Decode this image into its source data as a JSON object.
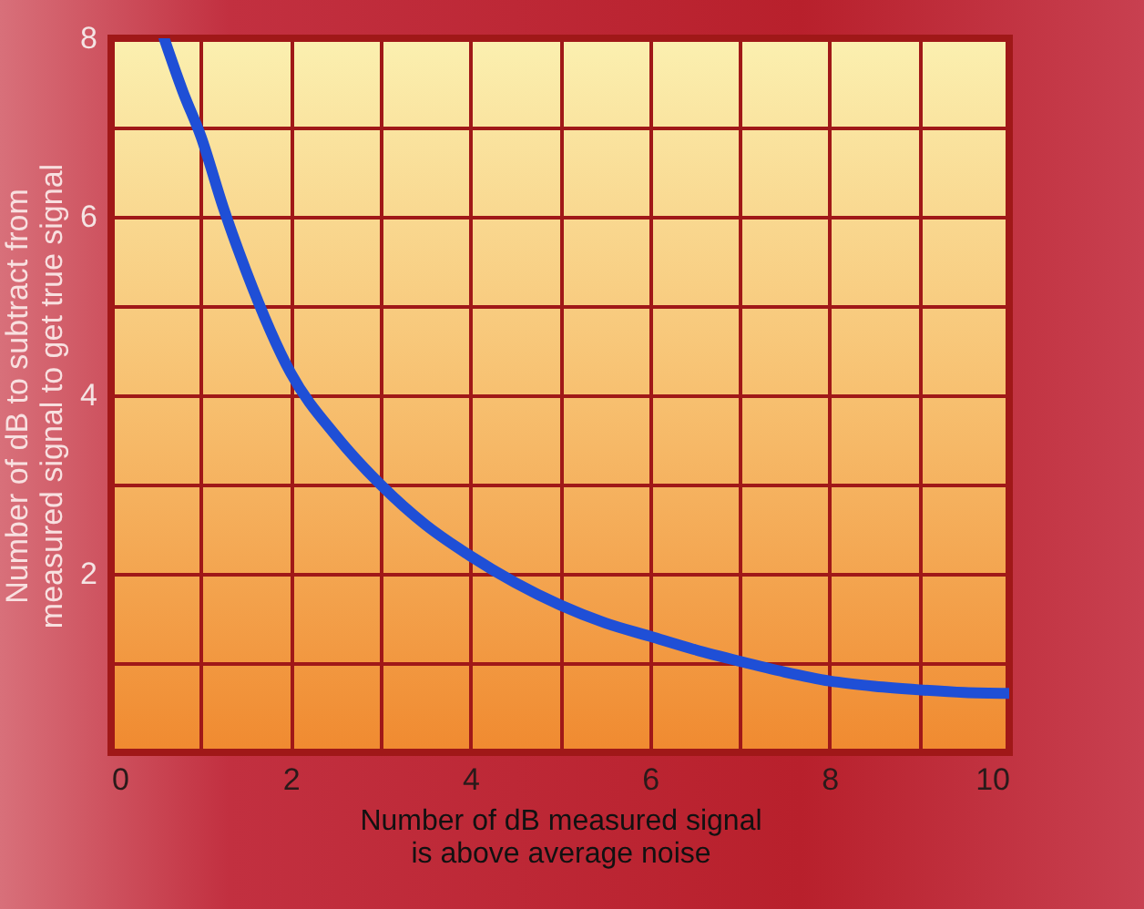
{
  "chart_data": {
    "type": "line",
    "xlabel": "Number of dB measured signal\nis above average noise",
    "ylabel": "Number of dB to subtract from\nmeasured signal to get true signal",
    "x": [
      0.59,
      0.8,
      1,
      1.25,
      1.5,
      2,
      2.5,
      3,
      3.5,
      4,
      4.5,
      5,
      5.5,
      6,
      6.5,
      7,
      7.5,
      8,
      8.5,
      9,
      9.5,
      10
    ],
    "series": [
      {
        "color": "#1f4fd6",
        "values": [
          8,
          7.4,
          6.9,
          6.1,
          5.4,
          4.25,
          3.55,
          3.0,
          2.55,
          2.2,
          1.9,
          1.65,
          1.45,
          1.3,
          1.15,
          1.02,
          0.9,
          0.8,
          0.74,
          0.7,
          0.67,
          0.66
        ]
      }
    ],
    "xlim": [
      0,
      10
    ],
    "ylim": [
      0,
      8
    ],
    "xticks": [
      0,
      {
        "value": 1,
        "label": null
      },
      2,
      {
        "value": 3,
        "label": null
      },
      4,
      {
        "value": 5,
        "label": null
      },
      6,
      {
        "value": 7,
        "label": null
      },
      8,
      {
        "value": 9,
        "label": null
      },
      10
    ],
    "yticks": [
      {
        "value": 0,
        "label": null
      },
      {
        "value": 1,
        "label": null
      },
      2,
      {
        "value": 3,
        "label": null
      },
      4,
      {
        "value": 5,
        "label": null
      },
      6,
      {
        "value": 7,
        "label": null
      },
      8
    ],
    "grid": true,
    "marker": "none",
    "line_style": "solid"
  }
}
